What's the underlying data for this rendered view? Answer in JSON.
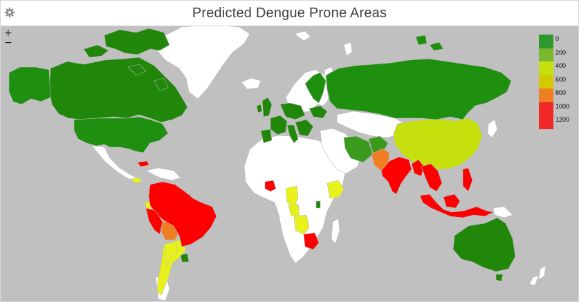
{
  "header": {
    "title": "Predicted Dengue Prone Areas",
    "settings_icon": "gear-icon"
  },
  "controls": {
    "zoom_in": "+",
    "zoom_out": "−"
  },
  "colors": {
    "ocean": "#c0c0c0",
    "no_data": "#ffffff",
    "border": "#b8b8b8"
  },
  "legend": {
    "items": [
      {
        "label": "0",
        "color": "#2e9a2e"
      },
      {
        "label": "200",
        "color": "#7cb82f"
      },
      {
        "label": "400",
        "color": "#c5e00c"
      },
      {
        "label": "600",
        "color": "#d2cb00"
      },
      {
        "label": "800",
        "color": "#f07f23"
      },
      {
        "label": "1000",
        "color": "#f02828"
      },
      {
        "label": "1200",
        "color": "#f02828"
      }
    ]
  }
}
